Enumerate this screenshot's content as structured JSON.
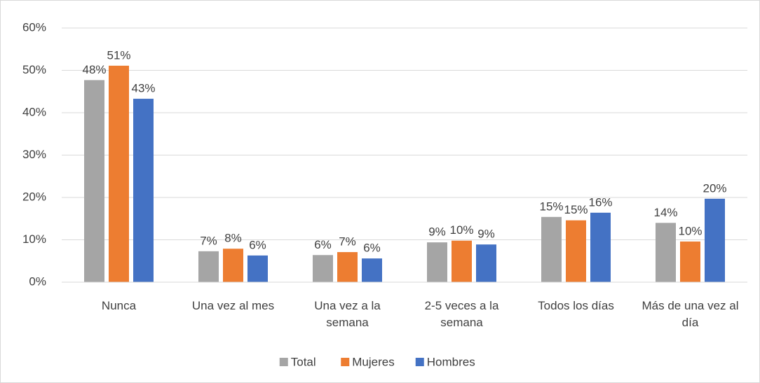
{
  "chart_data": {
    "type": "bar",
    "categories": [
      "Nunca",
      "Una vez al mes",
      "Una vez a la semana",
      "2-5 veces a la semana",
      "Todos los días",
      "Más de una vez al día"
    ],
    "series": [
      {
        "name": "Total",
        "color": "#a5a5a5",
        "values": [
          47.7,
          7.3,
          6.4,
          9.4,
          15.4,
          14.0
        ],
        "value_labels": [
          "48%",
          "7%",
          "6%",
          "9%",
          "15%",
          "14%"
        ]
      },
      {
        "name": "Mujeres",
        "color": "#ed7d31",
        "values": [
          51.1,
          7.9,
          7.1,
          9.8,
          14.6,
          9.6
        ],
        "value_labels": [
          "51%",
          "8%",
          "7%",
          "10%",
          "15%",
          "10%"
        ]
      },
      {
        "name": "Hombres",
        "color": "#4472c4",
        "values": [
          43.3,
          6.3,
          5.6,
          8.9,
          16.4,
          19.7
        ],
        "value_labels": [
          "43%",
          "6%",
          "6%",
          "9%",
          "16%",
          "20%"
        ]
      }
    ],
    "ylim": [
      0,
      60
    ],
    "yticks": [
      {
        "value": 0,
        "label": "0%"
      },
      {
        "value": 10,
        "label": "10%"
      },
      {
        "value": 20,
        "label": "20%"
      },
      {
        "value": 30,
        "label": "30%"
      },
      {
        "value": 40,
        "label": "40%"
      },
      {
        "value": 50,
        "label": "50%"
      },
      {
        "value": 60,
        "label": "60%"
      }
    ],
    "grid": true,
    "legend": "bottom"
  }
}
